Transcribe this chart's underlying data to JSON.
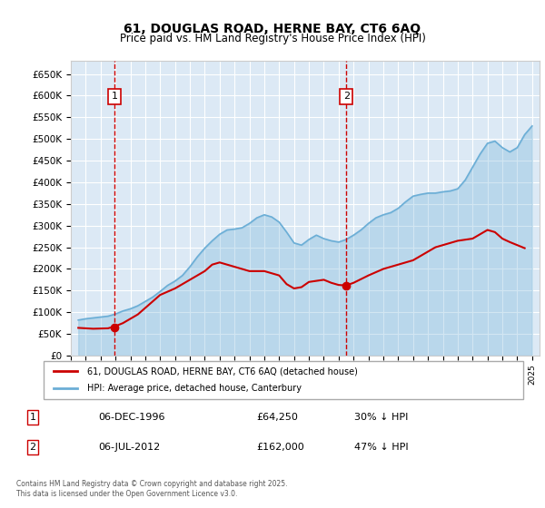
{
  "title_line1": "61, DOUGLAS ROAD, HERNE BAY, CT6 6AQ",
  "title_line2": "Price paid vs. HM Land Registry's House Price Index (HPI)",
  "ylabel": "",
  "xlabel": "",
  "ylim": [
    0,
    680000
  ],
  "ytick_values": [
    0,
    50000,
    100000,
    150000,
    200000,
    250000,
    300000,
    350000,
    400000,
    450000,
    500000,
    550000,
    600000,
    650000
  ],
  "ytick_labels": [
    "£0",
    "£50K",
    "£100K",
    "£150K",
    "£200K",
    "£250K",
    "£300K",
    "£350K",
    "£400K",
    "£450K",
    "£500K",
    "£550K",
    "£600K",
    "£650K"
  ],
  "xlim_start": 1994.0,
  "xlim_end": 2025.5,
  "background_color": "#dce9f5",
  "plot_bg_color": "#dce9f5",
  "hpi_color": "#6baed6",
  "price_color": "#cc0000",
  "vline_color": "#cc0000",
  "grid_color": "#ffffff",
  "transaction1_x": 1996.92,
  "transaction1_y": 64250,
  "transaction2_x": 2012.51,
  "transaction2_y": 162000,
  "annotation1_label": "1",
  "annotation2_label": "2",
  "legend_label1": "61, DOUGLAS ROAD, HERNE BAY, CT6 6AQ (detached house)",
  "legend_label2": "HPI: Average price, detached house, Canterbury",
  "table_row1": [
    "1",
    "06-DEC-1996",
    "£64,250",
    "30% ↓ HPI"
  ],
  "table_row2": [
    "2",
    "06-JUL-2012",
    "£162,000",
    "47% ↓ HPI"
  ],
  "footnote": "Contains HM Land Registry data © Crown copyright and database right 2025.\nThis data is licensed under the Open Government Licence v3.0.",
  "hpi_years": [
    1994.5,
    1995.0,
    1995.5,
    1996.0,
    1996.5,
    1997.0,
    1997.5,
    1998.0,
    1998.5,
    1999.0,
    1999.5,
    2000.0,
    2000.5,
    2001.0,
    2001.5,
    2002.0,
    2002.5,
    2003.0,
    2003.5,
    2004.0,
    2004.5,
    2005.0,
    2005.5,
    2006.0,
    2006.5,
    2007.0,
    2007.5,
    2008.0,
    2008.5,
    2009.0,
    2009.5,
    2010.0,
    2010.5,
    2011.0,
    2011.5,
    2012.0,
    2012.5,
    2013.0,
    2013.5,
    2014.0,
    2014.5,
    2015.0,
    2015.5,
    2016.0,
    2016.5,
    2017.0,
    2017.5,
    2018.0,
    2018.5,
    2019.0,
    2019.5,
    2020.0,
    2020.5,
    2021.0,
    2021.5,
    2022.0,
    2022.5,
    2023.0,
    2023.5,
    2024.0,
    2024.5,
    2025.0
  ],
  "hpi_values": [
    82000,
    85000,
    87000,
    89000,
    91000,
    96000,
    103000,
    108000,
    115000,
    125000,
    135000,
    148000,
    162000,
    172000,
    185000,
    205000,
    228000,
    248000,
    265000,
    280000,
    290000,
    292000,
    295000,
    305000,
    318000,
    325000,
    320000,
    308000,
    285000,
    260000,
    255000,
    268000,
    278000,
    270000,
    265000,
    262000,
    268000,
    278000,
    290000,
    305000,
    318000,
    325000,
    330000,
    340000,
    355000,
    368000,
    372000,
    375000,
    375000,
    378000,
    380000,
    385000,
    405000,
    435000,
    465000,
    490000,
    495000,
    480000,
    470000,
    480000,
    510000,
    530000
  ],
  "price_years": [
    1994.5,
    1995.5,
    1996.5,
    1997.0,
    1997.5,
    1998.0,
    1998.5,
    1999.0,
    1999.5,
    2000.0,
    2001.0,
    2002.0,
    2003.0,
    2003.5,
    2004.0,
    2005.0,
    2006.0,
    2007.0,
    2008.0,
    2008.5,
    2009.0,
    2009.5,
    2010.0,
    2011.0,
    2011.5,
    2012.0,
    2012.5,
    2013.0,
    2014.0,
    2015.0,
    2016.0,
    2017.0,
    2017.5,
    2018.0,
    2018.5,
    2019.0,
    2020.0,
    2021.0,
    2021.5,
    2022.0,
    2022.5,
    2023.0,
    2023.5,
    2024.0,
    2024.5
  ],
  "price_values": [
    64000,
    62000,
    63000,
    68000,
    75000,
    85000,
    95000,
    110000,
    125000,
    140000,
    155000,
    175000,
    195000,
    210000,
    215000,
    205000,
    195000,
    195000,
    185000,
    165000,
    155000,
    158000,
    170000,
    175000,
    168000,
    163000,
    162000,
    168000,
    185000,
    200000,
    210000,
    220000,
    230000,
    240000,
    250000,
    255000,
    265000,
    270000,
    280000,
    290000,
    285000,
    270000,
    262000,
    255000,
    248000
  ]
}
